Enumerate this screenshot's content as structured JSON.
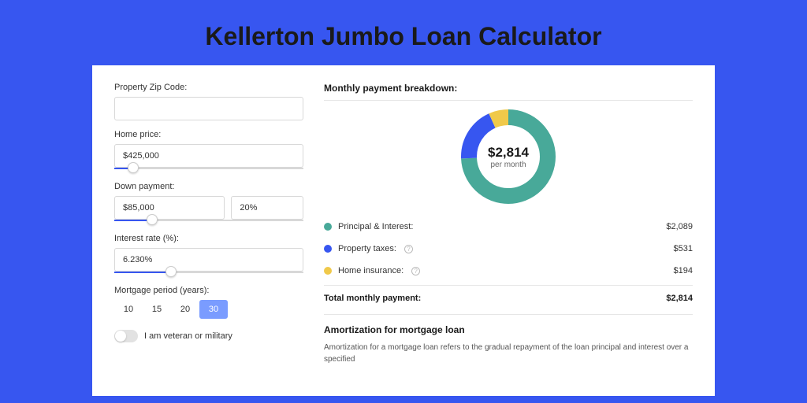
{
  "page": {
    "title": "Kellerton Jumbo Loan Calculator",
    "background_color": "#3756f0"
  },
  "form": {
    "zip": {
      "label": "Property Zip Code:",
      "value": ""
    },
    "home_price": {
      "label": "Home price:",
      "value": "$425,000",
      "slider_pct": 10
    },
    "down_payment": {
      "label": "Down payment:",
      "value": "$85,000",
      "pct_value": "20%",
      "slider_pct": 20
    },
    "interest_rate": {
      "label": "Interest rate (%):",
      "value": "6.230%",
      "slider_pct": 30
    },
    "period": {
      "label": "Mortgage period (years):",
      "options": [
        "10",
        "15",
        "20",
        "30"
      ],
      "active_index": 3
    },
    "veteran": {
      "label": "I am veteran or military",
      "checked": false
    }
  },
  "breakdown": {
    "title": "Monthly payment breakdown:",
    "donut": {
      "amount": "$2,814",
      "sub": "per month",
      "slices": [
        {
          "label": "Principal & Interest:",
          "color": "#48a999",
          "value_text": "$2,089",
          "value": 2089,
          "info": false
        },
        {
          "label": "Property taxes:",
          "color": "#3756f0",
          "value_text": "$531",
          "value": 531,
          "info": true
        },
        {
          "label": "Home insurance:",
          "color": "#f0c94a",
          "value_text": "$194",
          "value": 194,
          "info": true
        }
      ],
      "stroke_width": 20,
      "radius": 50
    },
    "total": {
      "label": "Total monthly payment:",
      "value": "$2,814"
    }
  },
  "amortization": {
    "title": "Amortization for mortgage loan",
    "text": "Amortization for a mortgage loan refers to the gradual repayment of the loan principal and interest over a specified"
  }
}
